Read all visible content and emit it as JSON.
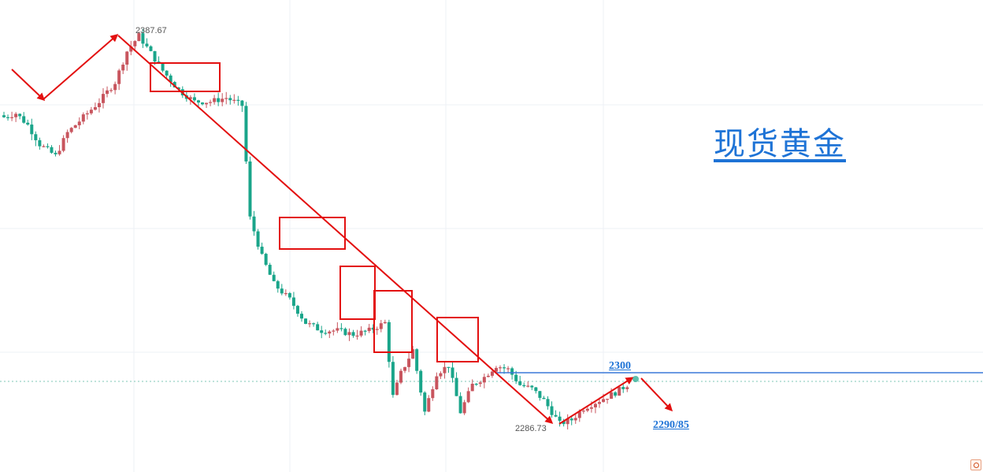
{
  "title": "现货黄金",
  "annotations": {
    "high_label": "2387.67",
    "low_label": "2286.73",
    "resistance_label": "2300",
    "target_label": "2290/85"
  },
  "colors": {
    "up_candle": "#c8555e",
    "down_candle": "#1aa58a",
    "arrow": "#e31010",
    "box": "#e31010",
    "resistance_line": "#3a78d8",
    "title": "#1e73d6"
  },
  "chart_data": {
    "type": "candlestick",
    "title": "现货黄金",
    "xlabel": "",
    "ylabel": "",
    "ylim": [
      2280,
      2392
    ],
    "high": 2387.67,
    "low": 2286.73,
    "resistance": 2300,
    "target": "2290/85",
    "grid": true,
    "close_path": [
      [
        0,
        2366
      ],
      [
        3,
        2367
      ],
      [
        6,
        2364
      ],
      [
        9,
        2359
      ],
      [
        13,
        2356
      ],
      [
        16,
        2362
      ],
      [
        20,
        2366
      ],
      [
        24,
        2370
      ],
      [
        28,
        2375
      ],
      [
        31,
        2383
      ],
      [
        34,
        2387
      ],
      [
        36,
        2384
      ],
      [
        40,
        2378
      ],
      [
        44,
        2373
      ],
      [
        48,
        2370
      ],
      [
        52,
        2370
      ],
      [
        56,
        2371
      ],
      [
        60,
        2369
      ],
      [
        62,
        2340
      ],
      [
        65,
        2330
      ],
      [
        68,
        2323
      ],
      [
        72,
        2319
      ],
      [
        76,
        2313
      ],
      [
        80,
        2311
      ],
      [
        84,
        2311
      ],
      [
        88,
        2310
      ],
      [
        92,
        2311
      ],
      [
        96,
        2313
      ],
      [
        98,
        2294
      ],
      [
        100,
        2300
      ],
      [
        103,
        2306
      ],
      [
        106,
        2290
      ],
      [
        109,
        2300
      ],
      [
        112,
        2302
      ],
      [
        115,
        2290
      ],
      [
        118,
        2297
      ],
      [
        121,
        2299
      ],
      [
        124,
        2302
      ],
      [
        127,
        2301
      ],
      [
        130,
        2297
      ],
      [
        133,
        2296
      ],
      [
        136,
        2293
      ],
      [
        140,
        2287
      ],
      [
        143,
        2288
      ],
      [
        146,
        2291
      ],
      [
        150,
        2293
      ],
      [
        154,
        2295
      ],
      [
        157,
        2297
      ]
    ],
    "annotations": [
      "2387.67",
      "2286.73",
      "2300",
      "2290/85"
    ]
  }
}
